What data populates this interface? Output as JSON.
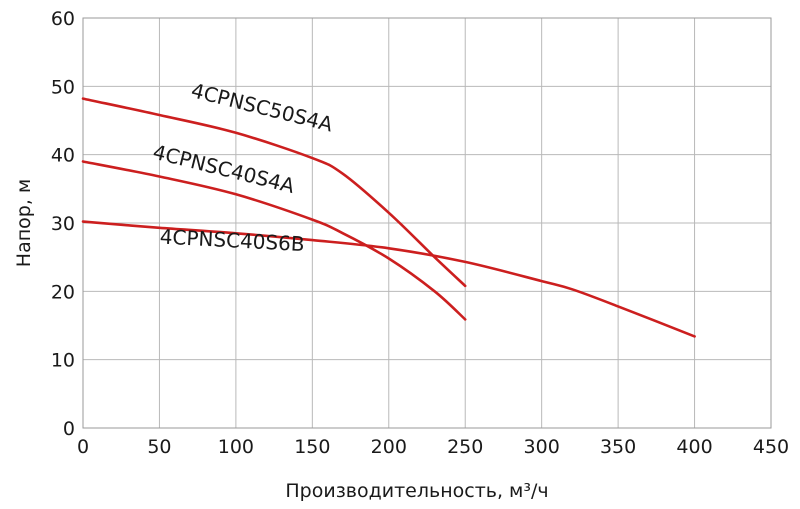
{
  "chart_data": {
    "type": "line",
    "title": "",
    "xlabel": "Производительность, м³/ч",
    "ylabel": "Напор, м",
    "xlim": [
      0,
      450
    ],
    "ylim": [
      0,
      60
    ],
    "xticks": [
      0,
      50,
      100,
      150,
      200,
      250,
      300,
      350,
      400,
      450
    ],
    "yticks": [
      0,
      10,
      20,
      30,
      40,
      50,
      60
    ],
    "grid": true,
    "legend": "inline labels",
    "line_color": "#cc1f1f",
    "series": [
      {
        "name": "4CPNSC50S4A",
        "points": [
          [
            0,
            48.2
          ],
          [
            50,
            45.8
          ],
          [
            100,
            43.2
          ],
          [
            150,
            39.5
          ],
          [
            170,
            37.2
          ],
          [
            200,
            31.5
          ],
          [
            230,
            25.0
          ],
          [
            250,
            20.8
          ]
        ]
      },
      {
        "name": "4CPNSC40S4A",
        "points": [
          [
            0,
            39.0
          ],
          [
            50,
            36.8
          ],
          [
            100,
            34.2
          ],
          [
            150,
            30.5
          ],
          [
            170,
            28.5
          ],
          [
            200,
            24.8
          ],
          [
            230,
            20.0
          ],
          [
            250,
            15.9
          ]
        ]
      },
      {
        "name": "4CPNSC40S6B",
        "points": [
          [
            0,
            30.2
          ],
          [
            50,
            29.3
          ],
          [
            100,
            28.5
          ],
          [
            150,
            27.5
          ],
          [
            200,
            26.3
          ],
          [
            250,
            24.3
          ],
          [
            300,
            21.5
          ],
          [
            320,
            20.3
          ],
          [
            350,
            17.8
          ],
          [
            400,
            13.4
          ]
        ]
      }
    ]
  }
}
